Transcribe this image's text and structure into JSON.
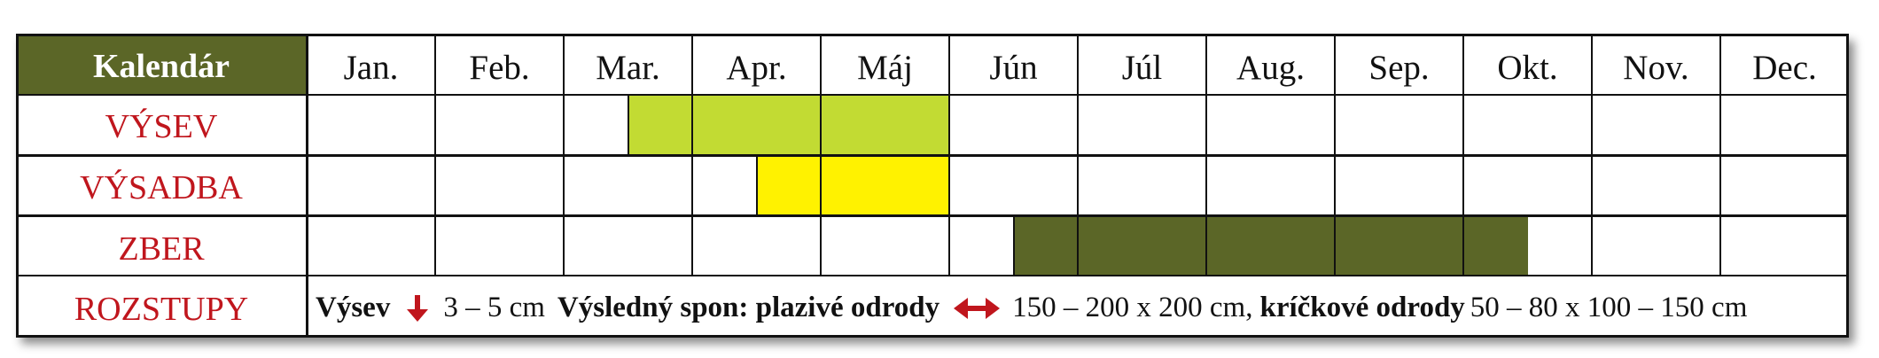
{
  "header": {
    "title": "Kalendár"
  },
  "months": [
    "Jan.",
    "Feb.",
    "Mar.",
    "Apr.",
    "Máj",
    "Jún",
    "Júl",
    "Aug.",
    "Sep.",
    "Okt.",
    "Nov.",
    "Dec."
  ],
  "rows": [
    {
      "label": "VÝSEV",
      "start_month": 3.5,
      "end_month": 6.0,
      "color": "#c2db33"
    },
    {
      "label": "VÝSADBA",
      "start_month": 4.5,
      "end_month": 6.0,
      "color": "#fff200"
    },
    {
      "label": "ZBER",
      "start_month": 6.5,
      "end_month": 10.5,
      "color": "#5b6627"
    }
  ],
  "spacing": {
    "label": "ROZSTUPY",
    "sow_title": "Výsev",
    "sow_value": "3 – 5 cm",
    "spacing_title": "Výsledný spon: plazivé odrody",
    "spacing_value": "150 – 200 x 200 cm,",
    "bush_title": "kríčkové odrody",
    "bush_value": "50 – 80 x 100 – 150 cm"
  },
  "colors": {
    "header_bg": "#5b6627",
    "label_text": "#c0161d",
    "arrow": "#c0161d"
  },
  "icons": {
    "sow_depth": "arrow-down-icon",
    "spacing": "arrow-left-right-icon"
  }
}
